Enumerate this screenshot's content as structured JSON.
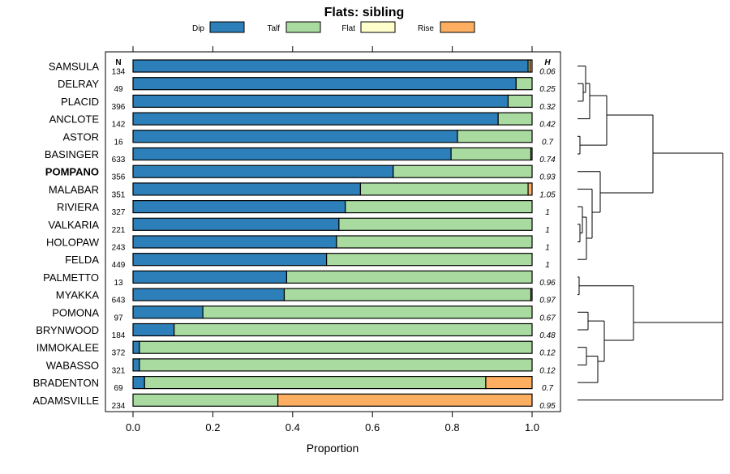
{
  "chart_data": {
    "type": "bar",
    "orientation": "horizontal",
    "stacked": true,
    "title": "Flats: sibling",
    "xlabel": "Proportion",
    "xlim": [
      0,
      1
    ],
    "xticks": [
      "0.0",
      "0.2",
      "0.4",
      "0.6",
      "0.8",
      "1.0"
    ],
    "n_header": "N",
    "h_header": "H",
    "legend_position": "top",
    "series": [
      {
        "name": "Dip",
        "color": "#2c7fb8"
      },
      {
        "name": "Talf",
        "color": "#a9dba0"
      },
      {
        "name": "Flat",
        "color": "#ffffcc"
      },
      {
        "name": "Rise",
        "color": "#fdae61"
      }
    ],
    "highlighted_category": "POMPANO",
    "rows": [
      {
        "label": "SAMSULA",
        "n": "134",
        "h": "0.06",
        "values": [
          0.99,
          0.005,
          0,
          0.005
        ]
      },
      {
        "label": "DELRAY",
        "n": "49",
        "h": "0.25",
        "values": [
          0.96,
          0.04,
          0,
          0
        ]
      },
      {
        "label": "PLACID",
        "n": "396",
        "h": "0.32",
        "values": [
          0.94,
          0.06,
          0,
          0
        ]
      },
      {
        "label": "ANCLOTE",
        "n": "142",
        "h": "0.42",
        "values": [
          0.915,
          0.085,
          0,
          0
        ]
      },
      {
        "label": "ASTOR",
        "n": "16",
        "h": "0.7",
        "values": [
          0.813,
          0.187,
          0,
          0
        ]
      },
      {
        "label": "BASINGER",
        "n": "633",
        "h": "0.74",
        "values": [
          0.797,
          0.2,
          0,
          0.003
        ]
      },
      {
        "label": "POMPANO",
        "n": "356",
        "h": "0.93",
        "values": [
          0.652,
          0.348,
          0,
          0
        ]
      },
      {
        "label": "MALABAR",
        "n": "351",
        "h": "1.05",
        "values": [
          0.57,
          0.42,
          0,
          0.01
        ]
      },
      {
        "label": "RIVIERA",
        "n": "327",
        "h": "1",
        "values": [
          0.532,
          0.468,
          0,
          0
        ]
      },
      {
        "label": "VALKARIA",
        "n": "221",
        "h": "1",
        "values": [
          0.516,
          0.484,
          0,
          0
        ]
      },
      {
        "label": "HOLOPAW",
        "n": "243",
        "h": "1",
        "values": [
          0.51,
          0.49,
          0,
          0
        ]
      },
      {
        "label": "FELDA",
        "n": "449",
        "h": "1",
        "values": [
          0.485,
          0.515,
          0,
          0
        ]
      },
      {
        "label": "PALMETTO",
        "n": "13",
        "h": "0.96",
        "values": [
          0.385,
          0.615,
          0,
          0
        ]
      },
      {
        "label": "MYAKKA",
        "n": "643",
        "h": "0.97",
        "values": [
          0.379,
          0.618,
          0,
          0.003
        ]
      },
      {
        "label": "POMONA",
        "n": "97",
        "h": "0.67",
        "values": [
          0.175,
          0.825,
          0,
          0
        ]
      },
      {
        "label": "BRYNWOOD",
        "n": "184",
        "h": "0.48",
        "values": [
          0.103,
          0.897,
          0,
          0
        ]
      },
      {
        "label": "IMMOKALEE",
        "n": "372",
        "h": "0.12",
        "values": [
          0.016,
          0.984,
          0,
          0
        ]
      },
      {
        "label": "WABASSO",
        "n": "321",
        "h": "0.12",
        "values": [
          0.016,
          0.984,
          0,
          0
        ]
      },
      {
        "label": "BRADENTON",
        "n": "69",
        "h": "0.7",
        "values": [
          0.029,
          0.855,
          0,
          0.116
        ]
      },
      {
        "label": "ADAMSVILLE",
        "n": "234",
        "h": "0.95",
        "values": [
          0,
          0.363,
          0,
          0.637
        ]
      }
    ]
  }
}
